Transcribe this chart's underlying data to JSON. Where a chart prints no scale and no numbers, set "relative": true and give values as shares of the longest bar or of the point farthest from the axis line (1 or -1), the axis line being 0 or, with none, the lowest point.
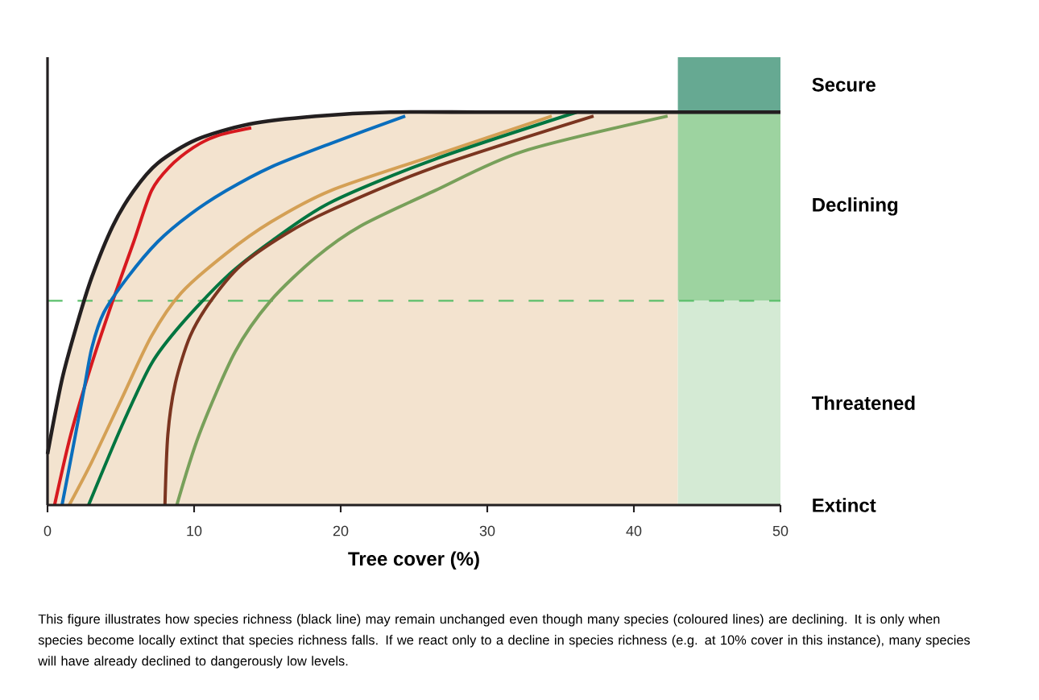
{
  "chart_data": {
    "type": "line",
    "relative": true,
    "xlabel": "Tree cover (%)",
    "xlim": [
      0,
      50
    ],
    "xticks": [
      0,
      10,
      20,
      30,
      40,
      50
    ],
    "line_style": "solid",
    "series": [
      {
        "color": "#231f20",
        "x": [
          0,
          0.99,
          2.01,
          3.02,
          4.45,
          5.88,
          7.51,
          10.15,
          13.79,
          18.3,
          23.35,
          30,
          40,
          50
        ],
        "values": [
          0.13,
          0.32,
          0.46,
          0.58,
          0.71,
          0.8,
          0.87,
          0.93,
          0.97,
          0.99,
          1,
          1,
          1,
          1
        ]
      },
      {
        "color": "#d7191f",
        "x": [
          0.48,
          1.59,
          3.02,
          4.45,
          5.88,
          7.09,
          8.3,
          9.95,
          11.57,
          13.9
        ],
        "values": [
          0,
          0.18,
          0.36,
          0.52,
          0.67,
          0.8,
          0.86,
          0.91,
          0.94,
          0.96
        ]
      },
      {
        "color": "#0a6ebd",
        "x": [
          0.99,
          1.81,
          2.52,
          3.02,
          3.84,
          5.47,
          7.51,
          9.73,
          12.18,
          15.22,
          19.29,
          24.4
        ],
        "values": [
          0,
          0.16,
          0.3,
          0.4,
          0.49,
          0.58,
          0.67,
          0.74,
          0.8,
          0.86,
          0.92,
          0.99
        ]
      },
      {
        "color": "#d4a055",
        "x": [
          1.48,
          3.02,
          5.05,
          7.09,
          9.12,
          12.18,
          15.22,
          19.29,
          26.4,
          34.4
        ],
        "values": [
          0,
          0.11,
          0.27,
          0.43,
          0.54,
          0.64,
          0.72,
          0.8,
          0.89,
          0.99
        ]
      },
      {
        "color": "#007540",
        "x": [
          2.8,
          5.05,
          7.09,
          9.12,
          12.18,
          15.22,
          19.29,
          26.4,
          36.1
        ],
        "values": [
          0,
          0.2,
          0.36,
          0.46,
          0.58,
          0.67,
          0.77,
          0.88,
          1
        ]
      },
      {
        "color": "#7b3520",
        "x": [
          8.01,
          8.21,
          8.72,
          9.73,
          11.15,
          13.19,
          16.25,
          19.29,
          26.4,
          37.25
        ],
        "values": [
          0,
          0.18,
          0.31,
          0.43,
          0.52,
          0.61,
          0.69,
          0.75,
          0.86,
          0.99
        ]
      },
      {
        "color": "#78a05a",
        "x": [
          8.82,
          10.35,
          12.8,
          15.22,
          18.29,
          21.34,
          26.4,
          32.4,
          42.3
        ],
        "values": [
          0,
          0.18,
          0.39,
          0.52,
          0.63,
          0.71,
          0.8,
          0.9,
          0.99
        ]
      }
    ],
    "ref_lines": [
      {
        "axis": "y",
        "value": 0.52,
        "color": "#5bbf6b",
        "line_style": "dashed"
      }
    ],
    "bands": [
      {
        "axis": "x",
        "from": 0,
        "to": 43,
        "color": "#f3e3cf"
      },
      {
        "axis": "y",
        "from": 1,
        "to": 1.14,
        "label": "Secure",
        "color": "#66a992"
      },
      {
        "axis": "y",
        "from": 0.52,
        "to": 1,
        "label": "Declining",
        "color": "#9dd3a0"
      },
      {
        "axis": "y",
        "from": 0,
        "to": 0.52,
        "label": "Threatened",
        "color": "#d4ead4"
      }
    ],
    "annotations": [
      {
        "text": "Extinct",
        "x": 50,
        "y": 0
      },
      "This figure illustrates how species richness (black line) may remain unchanged even though many species (coloured lines) are declining. It is only when species become locally extinct that species richness falls. If we react only to a decline in species richness (e.g. at 10% cover in this instance), many species will have already declined to dangerously low levels."
    ]
  }
}
